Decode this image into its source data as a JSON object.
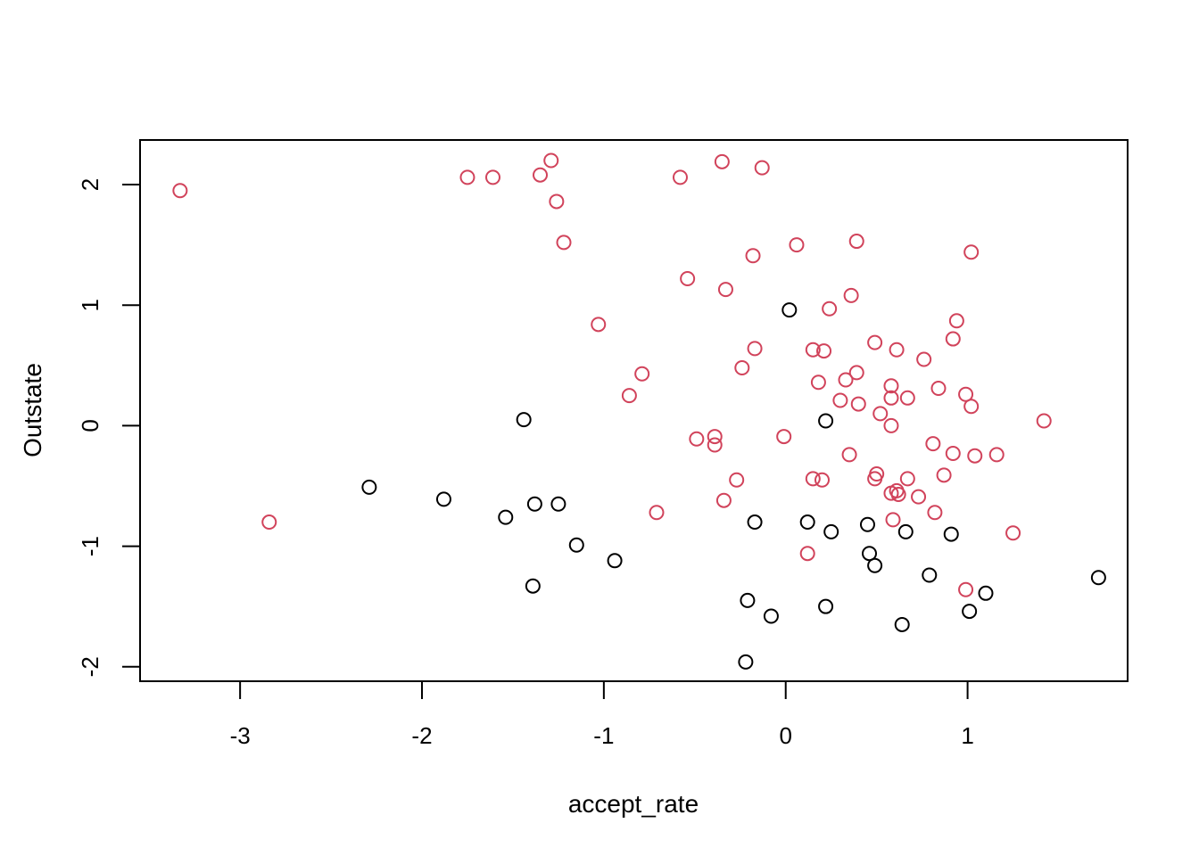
{
  "chart_data": {
    "type": "scatter",
    "title": "",
    "xlabel": "accept_rate",
    "ylabel": "Outstate",
    "xlim": [
      -3.55,
      1.88
    ],
    "ylim": [
      -2.12,
      2.37
    ],
    "x_ticks": [
      -3,
      -2,
      -1,
      0,
      1
    ],
    "y_ticks": [
      -2,
      -1,
      0,
      1,
      2
    ],
    "x_tick_labels": [
      "-3",
      "-2",
      "-1",
      "0",
      "1"
    ],
    "y_tick_labels": [
      "-2",
      "-1",
      "0",
      "1",
      "2"
    ],
    "grid": false,
    "legend": "none",
    "series": [
      {
        "color": "#000000",
        "points": [
          [
            0.02,
            0.96
          ],
          [
            0.22,
            0.04
          ],
          [
            -1.44,
            0.05
          ],
          [
            -2.29,
            -0.51
          ],
          [
            -1.88,
            -0.61
          ],
          [
            -1.54,
            -0.76
          ],
          [
            -1.38,
            -0.65
          ],
          [
            -1.25,
            -0.65
          ],
          [
            -1.15,
            -0.99
          ],
          [
            -0.94,
            -1.12
          ],
          [
            -1.39,
            -1.33
          ],
          [
            -0.17,
            -0.8
          ],
          [
            0.12,
            -0.8
          ],
          [
            0.25,
            -0.88
          ],
          [
            0.45,
            -0.82
          ],
          [
            0.66,
            -0.88
          ],
          [
            0.91,
            -0.9
          ],
          [
            0.46,
            -1.06
          ],
          [
            0.49,
            -1.16
          ],
          [
            0.79,
            -1.24
          ],
          [
            1.72,
            -1.26
          ],
          [
            1.1,
            -1.39
          ],
          [
            -0.21,
            -1.45
          ],
          [
            -0.08,
            -1.58
          ],
          [
            0.22,
            -1.5
          ],
          [
            1.01,
            -1.54
          ],
          [
            0.64,
            -1.65
          ],
          [
            -0.22,
            -1.96
          ]
        ]
      },
      {
        "color": "#d1435b",
        "points": [
          [
            -3.33,
            1.95
          ],
          [
            -2.84,
            -0.8
          ],
          [
            -1.75,
            2.06
          ],
          [
            -1.61,
            2.06
          ],
          [
            -1.35,
            2.08
          ],
          [
            -1.29,
            2.2
          ],
          [
            -1.26,
            1.86
          ],
          [
            -1.22,
            1.52
          ],
          [
            -0.58,
            2.06
          ],
          [
            -0.35,
            2.19
          ],
          [
            -0.13,
            2.14
          ],
          [
            -1.03,
            0.84
          ],
          [
            -0.79,
            0.43
          ],
          [
            -0.86,
            0.25
          ],
          [
            -0.71,
            -0.72
          ],
          [
            -0.54,
            1.22
          ],
          [
            -0.33,
            1.13
          ],
          [
            -0.18,
            1.41
          ],
          [
            -0.17,
            0.64
          ],
          [
            -0.24,
            0.48
          ],
          [
            -0.49,
            -0.11
          ],
          [
            -0.39,
            -0.09
          ],
          [
            -0.39,
            -0.16
          ],
          [
            -0.27,
            -0.45
          ],
          [
            -0.34,
            -0.62
          ],
          [
            0.06,
            1.5
          ],
          [
            0.39,
            1.53
          ],
          [
            0.36,
            1.08
          ],
          [
            0.24,
            0.97
          ],
          [
            0.15,
            0.63
          ],
          [
            0.21,
            0.62
          ],
          [
            0.33,
            0.38
          ],
          [
            0.39,
            0.44
          ],
          [
            0.18,
            0.36
          ],
          [
            0.3,
            0.21
          ],
          [
            0.4,
            0.18
          ],
          [
            -0.01,
            -0.09
          ],
          [
            0.35,
            -0.24
          ],
          [
            0.15,
            -0.44
          ],
          [
            0.2,
            -0.45
          ],
          [
            0.12,
            -1.06
          ],
          [
            0.49,
            0.69
          ],
          [
            0.61,
            0.63
          ],
          [
            0.76,
            0.55
          ],
          [
            0.58,
            0.33
          ],
          [
            0.58,
            0.23
          ],
          [
            0.67,
            0.23
          ],
          [
            0.52,
            0.1
          ],
          [
            0.58,
            0.0
          ],
          [
            0.5,
            -0.4
          ],
          [
            0.49,
            -0.44
          ],
          [
            0.67,
            -0.44
          ],
          [
            0.58,
            -0.56
          ],
          [
            0.61,
            -0.54
          ],
          [
            0.62,
            -0.57
          ],
          [
            0.73,
            -0.59
          ],
          [
            0.59,
            -0.78
          ],
          [
            0.82,
            -0.72
          ],
          [
            1.02,
            1.44
          ],
          [
            0.94,
            0.87
          ],
          [
            0.92,
            0.72
          ],
          [
            0.84,
            0.31
          ],
          [
            0.99,
            0.26
          ],
          [
            1.02,
            0.16
          ],
          [
            1.42,
            0.04
          ],
          [
            0.81,
            -0.15
          ],
          [
            0.92,
            -0.23
          ],
          [
            1.04,
            -0.25
          ],
          [
            1.16,
            -0.24
          ],
          [
            0.87,
            -0.41
          ],
          [
            1.25,
            -0.89
          ],
          [
            0.99,
            -1.36
          ]
        ]
      }
    ]
  }
}
